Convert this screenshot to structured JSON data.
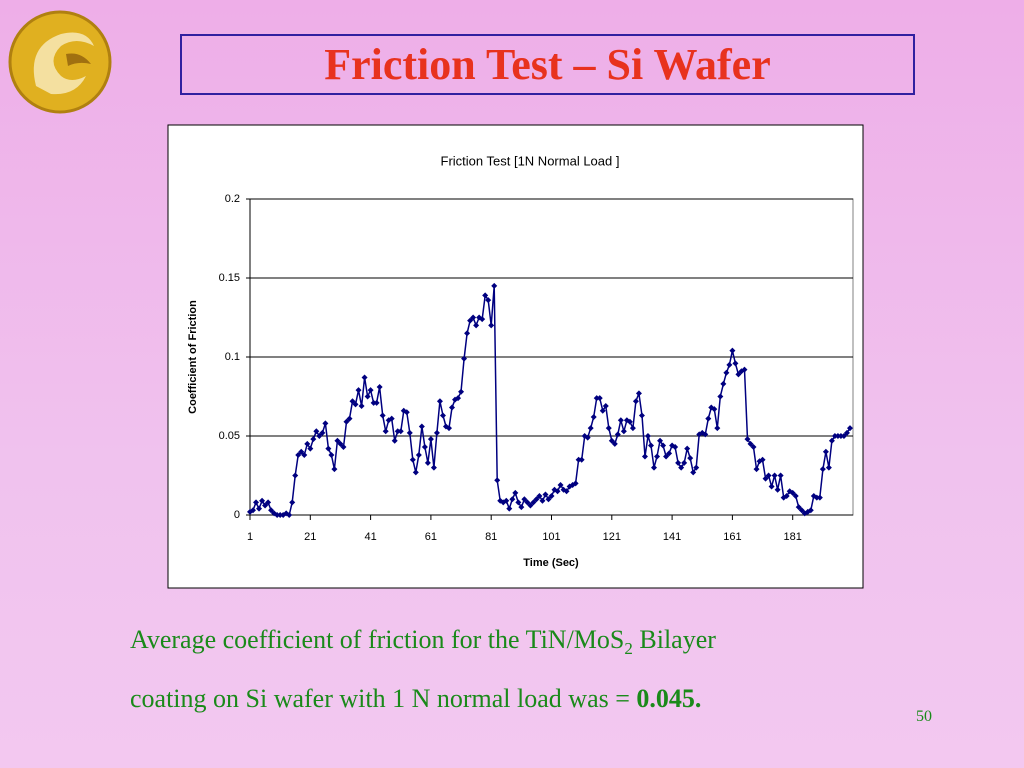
{
  "slide": {
    "title": "Friction Test – Si Wafer",
    "caption": [
      "Average coefficient of friction for the TiN/MoS",
      "2",
      " Bilayer",
      "coating on Si wafer with 1 N normal load was = ",
      "0.045."
    ],
    "page_number": "50"
  },
  "chart_data": {
    "type": "line",
    "title": "Friction Test [1N Normal Load ]",
    "x_label": "Time (Sec)",
    "y_label": "Coefficient of Friction",
    "color": "#000080",
    "marker": "diamond",
    "grid": true,
    "xlim": [
      1,
      201
    ],
    "xticks": [
      1,
      21,
      41,
      61,
      81,
      101,
      121,
      141,
      161,
      181
    ],
    "ylim": [
      0,
      0.2
    ],
    "yticks": [
      0,
      0.05,
      0.1,
      0.15,
      0.2
    ],
    "x": [
      1,
      2,
      3,
      4,
      5,
      6,
      7,
      8,
      9,
      10,
      11,
      12,
      13,
      14,
      15,
      16,
      17,
      18,
      19,
      20,
      21,
      22,
      23,
      24,
      25,
      26,
      27,
      28,
      29,
      30,
      31,
      32,
      33,
      34,
      35,
      36,
      37,
      38,
      39,
      40,
      41,
      42,
      43,
      44,
      45,
      46,
      47,
      48,
      49,
      50,
      51,
      52,
      53,
      54,
      55,
      56,
      57,
      58,
      59,
      60,
      61,
      62,
      63,
      64,
      65,
      66,
      67,
      68,
      69,
      70,
      71,
      72,
      73,
      74,
      75,
      76,
      77,
      78,
      79,
      80,
      81,
      82,
      83,
      84,
      85,
      86,
      87,
      88,
      89,
      90,
      91,
      92,
      93,
      94,
      95,
      96,
      97,
      98,
      99,
      100,
      101,
      102,
      103,
      104,
      105,
      106,
      107,
      108,
      109,
      110,
      111,
      112,
      113,
      114,
      115,
      116,
      117,
      118,
      119,
      120,
      121,
      122,
      123,
      124,
      125,
      126,
      127,
      128,
      129,
      130,
      131,
      132,
      133,
      134,
      135,
      136,
      137,
      138,
      139,
      140,
      141,
      142,
      143,
      144,
      145,
      146,
      147,
      148,
      149,
      150,
      151,
      152,
      153,
      154,
      155,
      156,
      157,
      158,
      159,
      160,
      161,
      162,
      163,
      164,
      165,
      166,
      167,
      168,
      169,
      170,
      171,
      172,
      173,
      174,
      175,
      176,
      177,
      178,
      179,
      180,
      181,
      182,
      183,
      184,
      185,
      186,
      187,
      188,
      189,
      190,
      191,
      192,
      193,
      194,
      195,
      196,
      197,
      198,
      199,
      200
    ],
    "values": [
      0.002,
      0.003,
      0.008,
      0.004,
      0.009,
      0.006,
      0.008,
      0.003,
      0.001,
      0,
      0,
      0,
      0.001,
      0,
      0.008,
      0.025,
      0.038,
      0.04,
      0.038,
      0.045,
      0.042,
      0.048,
      0.053,
      0.05,
      0.052,
      0.058,
      0.042,
      0.038,
      0.029,
      0.047,
      0.045,
      0.043,
      0.059,
      0.061,
      0.072,
      0.07,
      0.079,
      0.069,
      0.087,
      0.075,
      0.079,
      0.071,
      0.071,
      0.081,
      0.063,
      0.053,
      0.06,
      0.061,
      0.047,
      0.053,
      0.053,
      0.066,
      0.065,
      0.052,
      0.035,
      0.027,
      0.038,
      0.056,
      0.043,
      0.033,
      0.048,
      0.03,
      0.052,
      0.072,
      0.063,
      0.056,
      0.055,
      0.068,
      0.073,
      0.074,
      0.078,
      0.099,
      0.115,
      0.123,
      0.125,
      0.12,
      0.125,
      0.124,
      0.139,
      0.136,
      0.12,
      0.145,
      0.022,
      0.009,
      0.008,
      0.009,
      0.004,
      0.01,
      0.014,
      0.008,
      0.005,
      0.01,
      0.008,
      0.006,
      0.008,
      0.01,
      0.012,
      0.009,
      0.013,
      0.01,
      0.012,
      0.016,
      0.015,
      0.019,
      0.016,
      0.015,
      0.018,
      0.019,
      0.02,
      0.035,
      0.035,
      0.05,
      0.049,
      0.055,
      0.062,
      0.074,
      0.074,
      0.066,
      0.069,
      0.055,
      0.047,
      0.045,
      0.051,
      0.06,
      0.053,
      0.06,
      0.059,
      0.055,
      0.072,
      0.077,
      0.063,
      0.037,
      0.05,
      0.044,
      0.03,
      0.037,
      0.047,
      0.044,
      0.037,
      0.039,
      0.044,
      0.043,
      0.033,
      0.03,
      0.033,
      0.042,
      0.036,
      0.027,
      0.03,
      0.051,
      0.052,
      0.051,
      0.061,
      0.068,
      0.067,
      0.055,
      0.075,
      0.083,
      0.09,
      0.095,
      0.104,
      0.096,
      0.089,
      0.091,
      0.092,
      0.048,
      0.045,
      0.043,
      0.029,
      0.034,
      0.035,
      0.023,
      0.025,
      0.018,
      0.025,
      0.016,
      0.025,
      0.011,
      0.012,
      0.015,
      0.014,
      0.012,
      0.005,
      0.003,
      0.001,
      0.002,
      0.003,
      0.012,
      0.011,
      0.011,
      0.029,
      0.04,
      0.03,
      0.047,
      0.05,
      0.05,
      0.05,
      0.05,
      0.052,
      0.055
    ]
  }
}
